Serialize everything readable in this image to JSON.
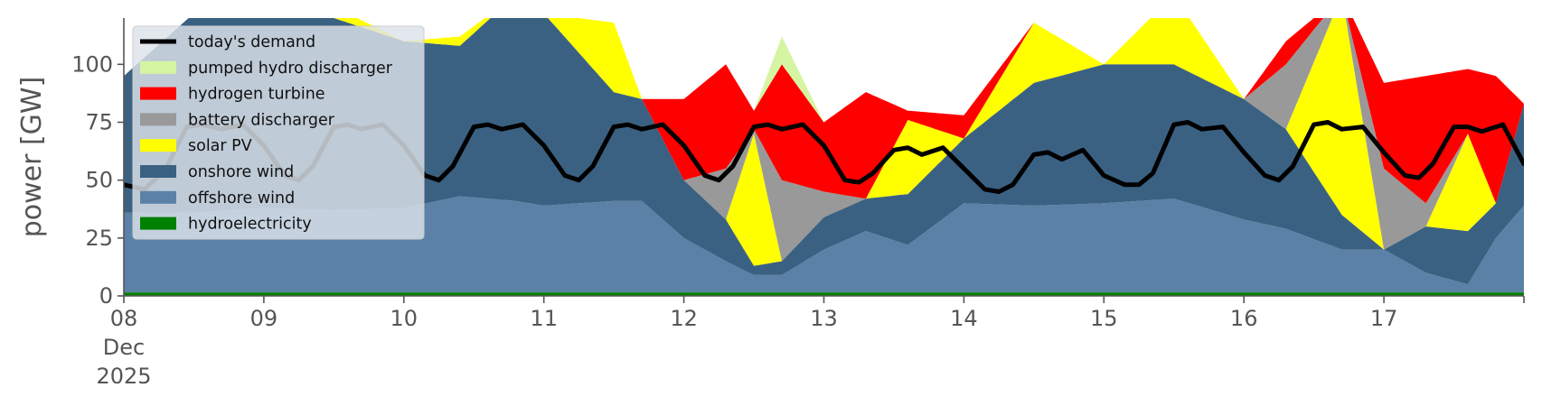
{
  "chart_data": {
    "type": "area",
    "title": "",
    "xlabel": "",
    "ylabel": "power [GW]",
    "ylim": [
      0,
      120
    ],
    "yticks": [
      0,
      25,
      50,
      75,
      100
    ],
    "xlim": [
      0,
      10
    ],
    "xticks": [
      {
        "x": 0,
        "lines": [
          "08",
          "Dec",
          "2025"
        ]
      },
      {
        "x": 1,
        "lines": [
          "09"
        ]
      },
      {
        "x": 2,
        "lines": [
          "10"
        ]
      },
      {
        "x": 3,
        "lines": [
          "11"
        ]
      },
      {
        "x": 4,
        "lines": [
          "12"
        ]
      },
      {
        "x": 5,
        "lines": [
          "13"
        ]
      },
      {
        "x": 6,
        "lines": [
          "14"
        ]
      },
      {
        "x": 7,
        "lines": [
          "15"
        ]
      },
      {
        "x": 8,
        "lines": [
          "16"
        ]
      },
      {
        "x": 9,
        "lines": [
          "17"
        ]
      }
    ],
    "grid": false,
    "legend_position": "top-left",
    "stack_order": [
      "hydroelectricity",
      "offshore wind",
      "onshore wind",
      "solar PV",
      "battery discharger",
      "hydrogen turbine",
      "pumped hydro discharger"
    ],
    "series": [
      {
        "name": "hydroelectricity",
        "color": "#008000",
        "kind": "area",
        "x": [
          0,
          10
        ],
        "values": [
          1.5,
          1.5
        ]
      },
      {
        "name": "offshore wind",
        "color": "#5b82a6",
        "kind": "area",
        "x": [
          0,
          0.5,
          1,
          1.5,
          2,
          2.4,
          2.8,
          3,
          3.5,
          3.7,
          4,
          4.3,
          4.5,
          4.7,
          5,
          5.3,
          5.6,
          6,
          6.5,
          7,
          7.5,
          8,
          8.3,
          8.7,
          9,
          9.3,
          9.6,
          9.8,
          10
        ],
        "values": [
          36,
          36,
          38,
          37,
          38,
          43,
          41,
          39,
          41,
          41,
          25,
          15,
          9,
          9,
          20,
          28,
          22,
          40,
          39,
          40,
          42,
          33,
          29,
          20,
          20,
          10,
          5,
          25,
          39
        ]
      },
      {
        "name": "onshore wind",
        "color": "#3b6182",
        "kind": "area",
        "x": [
          0,
          0.5,
          1,
          1.5,
          2,
          2.4,
          2.8,
          3,
          3.5,
          3.7,
          4,
          4.3,
          4.5,
          4.7,
          5,
          5.3,
          5.6,
          6,
          6.5,
          7,
          7.5,
          8,
          8.3,
          8.7,
          9,
          9.3,
          9.6,
          9.8,
          10
        ],
        "values": [
          95,
          122,
          125,
          120,
          110,
          108,
          130,
          122,
          88,
          85,
          50,
          33,
          13,
          15,
          34,
          42,
          44,
          68,
          92,
          100,
          100,
          85,
          72,
          35,
          20,
          30,
          28,
          40,
          83
        ]
      },
      {
        "name": "solar PV",
        "color": "#ffff00",
        "kind": "area",
        "x": [
          0,
          0.5,
          1,
          1.5,
          2,
          2.4,
          2.8,
          3,
          3.5,
          3.7,
          4,
          4.3,
          4.5,
          4.7,
          5,
          5.3,
          5.6,
          6,
          6.5,
          7,
          7.5,
          8,
          8.3,
          8.7,
          9,
          9.3,
          9.6,
          9.8,
          10
        ],
        "values": [
          95,
          122,
          128,
          125,
          110,
          112,
          130,
          122,
          118,
          85,
          50,
          33,
          70,
          15,
          34,
          42,
          76,
          68,
          118,
          100,
          130,
          85,
          72,
          130,
          20,
          30,
          70,
          40,
          83
        ]
      },
      {
        "name": "battery discharger",
        "color": "#999999",
        "kind": "area",
        "x": [
          0,
          0.5,
          1,
          1.5,
          2,
          2.4,
          2.8,
          3,
          3.5,
          3.7,
          4,
          4.3,
          4.5,
          4.7,
          5,
          5.3,
          5.6,
          6,
          6.5,
          7,
          7.5,
          8,
          8.3,
          8.7,
          9,
          9.3,
          9.6,
          9.8,
          10
        ],
        "values": [
          95,
          122,
          128,
          125,
          110,
          112,
          130,
          122,
          118,
          85,
          50,
          55,
          72,
          50,
          45,
          42,
          76,
          68,
          118,
          100,
          130,
          85,
          100,
          130,
          55,
          40,
          70,
          40,
          83
        ]
      },
      {
        "name": "hydrogen turbine",
        "color": "#ff0000",
        "kind": "area",
        "x": [
          0,
          0.5,
          1,
          1.5,
          2,
          2.4,
          2.8,
          3,
          3.5,
          3.7,
          4,
          4.3,
          4.5,
          4.7,
          5,
          5.3,
          5.6,
          6,
          6.5,
          7,
          7.5,
          8,
          8.3,
          8.7,
          9,
          9.3,
          9.6,
          9.8,
          10
        ],
        "values": [
          95,
          122,
          128,
          125,
          110,
          112,
          130,
          122,
          118,
          85,
          85,
          100,
          80,
          100,
          75,
          88,
          80,
          78,
          118,
          100,
          130,
          85,
          110,
          130,
          92,
          95,
          98,
          95,
          83
        ]
      },
      {
        "name": "pumped hydro discharger",
        "color": "#d6f5a3",
        "kind": "area",
        "x": [
          0,
          0.5,
          1,
          1.5,
          2,
          2.4,
          2.8,
          3,
          3.5,
          3.7,
          4,
          4.3,
          4.5,
          4.7,
          5,
          5.3,
          5.6,
          6,
          6.5,
          7,
          7.5,
          8,
          8.3,
          8.7,
          9,
          9.3,
          9.6,
          9.8,
          10
        ],
        "values": [
          95,
          122,
          128,
          125,
          110,
          112,
          130,
          122,
          118,
          85,
          85,
          100,
          80,
          112,
          75,
          88,
          80,
          78,
          118,
          100,
          130,
          85,
          110,
          130,
          92,
          95,
          98,
          95,
          83
        ]
      },
      {
        "name": "today's demand",
        "color": "#000000",
        "kind": "line",
        "x": [
          0,
          0.15,
          0.3,
          0.45,
          0.55,
          0.7,
          0.85,
          1.0,
          1.15,
          1.25,
          1.35,
          1.5,
          1.6,
          1.7,
          1.85,
          2.0,
          2.15,
          2.25,
          2.35,
          2.5,
          2.6,
          2.7,
          2.85,
          3.0,
          3.15,
          3.25,
          3.35,
          3.5,
          3.6,
          3.7,
          3.85,
          4.0,
          4.15,
          4.25,
          4.35,
          4.5,
          4.6,
          4.7,
          4.85,
          5.0,
          5.15,
          5.25,
          5.35,
          5.5,
          5.6,
          5.7,
          5.85,
          6.0,
          6.15,
          6.25,
          6.35,
          6.5,
          6.6,
          6.7,
          6.85,
          7.0,
          7.15,
          7.25,
          7.35,
          7.5,
          7.6,
          7.7,
          7.85,
          8.0,
          8.15,
          8.25,
          8.35,
          8.5,
          8.6,
          8.7,
          8.85,
          9.0,
          9.15,
          9.25,
          9.35,
          9.5,
          9.6,
          9.7,
          9.85,
          10.0
        ],
        "values": [
          48,
          46,
          55,
          73,
          74,
          72,
          74,
          65,
          52,
          50,
          56,
          73,
          74,
          72,
          74,
          65,
          52,
          50,
          56,
          73,
          74,
          72,
          74,
          65,
          52,
          50,
          56,
          73,
          74,
          72,
          74,
          65,
          52,
          50,
          56,
          73,
          74,
          72,
          74,
          65,
          50,
          49,
          53,
          63,
          64,
          61,
          64,
          55,
          46,
          45,
          48,
          61,
          62,
          59,
          63,
          52,
          48,
          48,
          53,
          74,
          75,
          72,
          73,
          62,
          52,
          50,
          56,
          74,
          75,
          72,
          73,
          62,
          52,
          51,
          57,
          73,
          73,
          71,
          74,
          57
        ]
      }
    ],
    "legend": [
      {
        "label": "today's demand",
        "color": "#000000",
        "kind": "line"
      },
      {
        "label": "pumped hydro discharger",
        "color": "#d6f5a3",
        "kind": "patch"
      },
      {
        "label": "hydrogen turbine",
        "color": "#ff0000",
        "kind": "patch"
      },
      {
        "label": "battery discharger",
        "color": "#999999",
        "kind": "patch"
      },
      {
        "label": "solar PV",
        "color": "#ffff00",
        "kind": "patch"
      },
      {
        "label": "onshore wind",
        "color": "#3b6182",
        "kind": "patch"
      },
      {
        "label": "offshore wind",
        "color": "#5b82a6",
        "kind": "patch"
      },
      {
        "label": "hydroelectricity",
        "color": "#008000",
        "kind": "patch"
      }
    ]
  }
}
